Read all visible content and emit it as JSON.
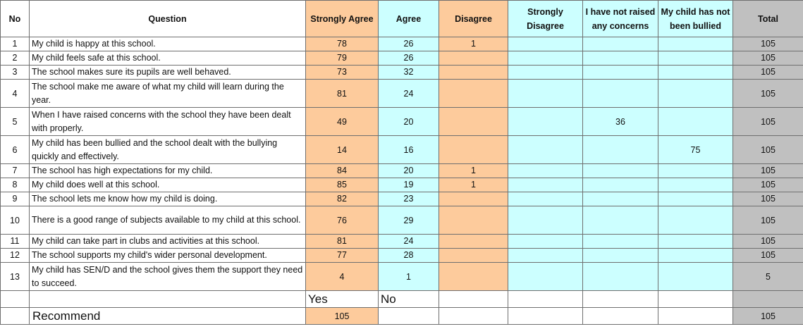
{
  "headers": {
    "no": "No",
    "question": "Question",
    "strongly_agree": "Strongly Agree",
    "agree": "Agree",
    "disagree": "Disagree",
    "strongly_disagree_1": "Strongly",
    "strongly_disagree_2": "Disagree",
    "not_raised_1": "I have not raised",
    "not_raised_2": "any concerns",
    "not_bullied_1": "My child has not",
    "not_bullied_2": "been bullied",
    "total": "Total"
  },
  "rows": [
    {
      "no": "1",
      "question": "My child is happy at this school.",
      "sa": "78",
      "ag": "26",
      "di": "1",
      "sd": "",
      "nr": "",
      "nb": "",
      "total": "105"
    },
    {
      "no": "2",
      "question": "My child feels safe at this school.",
      "sa": "79",
      "ag": "26",
      "di": "",
      "sd": "",
      "nr": "",
      "nb": "",
      "total": "105"
    },
    {
      "no": "3",
      "question": "The school makes sure its pupils are well behaved.",
      "sa": "73",
      "ag": "32",
      "di": "",
      "sd": "",
      "nr": "",
      "nb": "",
      "total": "105"
    },
    {
      "no": "4",
      "question": "The school make me aware of what my child will learn during the year.",
      "sa": "81",
      "ag": "24",
      "di": "",
      "sd": "",
      "nr": "",
      "nb": "",
      "total": "105"
    },
    {
      "no": "5",
      "question": "When I have raised concerns with the school they have been dealt with properly.",
      "sa": "49",
      "ag": "20",
      "di": "",
      "sd": "",
      "nr": "36",
      "nb": "",
      "total": "105"
    },
    {
      "no": "6",
      "question": "My child has been bullied and the school dealt with the bullying quickly and effectively.",
      "sa": "14",
      "ag": "16",
      "di": "",
      "sd": "",
      "nr": "",
      "nb": "75",
      "total": "105"
    },
    {
      "no": "7",
      "question": "The school has high expectations for my child.",
      "sa": "84",
      "ag": "20",
      "di": "1",
      "sd": "",
      "nr": "",
      "nb": "",
      "total": "105"
    },
    {
      "no": "8",
      "question": "My child does well at this school.",
      "sa": "85",
      "ag": "19",
      "di": "1",
      "sd": "",
      "nr": "",
      "nb": "",
      "total": "105"
    },
    {
      "no": "9",
      "question": "The school lets me know how my child is doing.",
      "sa": "82",
      "ag": "23",
      "di": "",
      "sd": "",
      "nr": "",
      "nb": "",
      "total": "105"
    },
    {
      "no": "10",
      "question": "There is a good range of subjects available to my child at this school.",
      "sa": "76",
      "ag": "29",
      "di": "",
      "sd": "",
      "nr": "",
      "nb": "",
      "total": "105"
    },
    {
      "no": "11",
      "question": "My child can take part in clubs and activities at this school.",
      "sa": "81",
      "ag": "24",
      "di": "",
      "sd": "",
      "nr": "",
      "nb": "",
      "total": "105"
    },
    {
      "no": "12",
      "question": "The school supports my child's wider personal development.",
      "sa": "77",
      "ag": "28",
      "di": "",
      "sd": "",
      "nr": "",
      "nb": "",
      "total": "105"
    },
    {
      "no": "13",
      "question": "My child has SEN/D and the school gives them the support they need to succeed.",
      "sa": "4",
      "ag": "1",
      "di": "",
      "sd": "",
      "nr": "",
      "nb": "",
      "total": "5"
    }
  ],
  "recommend": {
    "yes_label": "Yes",
    "no_label": "No",
    "label": "Recommend",
    "yes_value": "105",
    "no_value": "",
    "total": "105"
  }
}
